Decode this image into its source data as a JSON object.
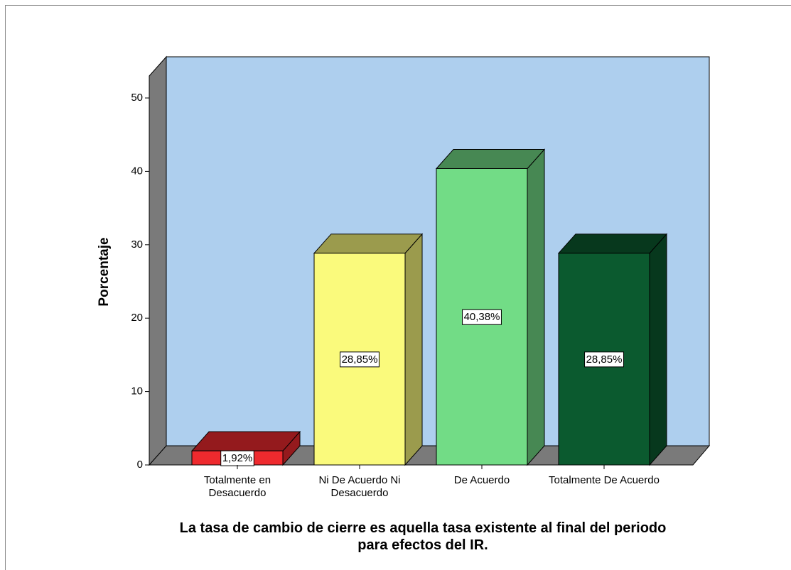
{
  "chart_data": {
    "type": "bar3d",
    "x_label": "La tasa de cambio de cierre es aquella tasa existente al final del periodo para efectos del IR.",
    "y_label": "Porcentaje",
    "categories": [
      "Totalmente en Desacuerdo",
      "Ni De Acuerdo Ni Desacuerdo",
      "De Acuerdo",
      "Totalmente De Acuerdo"
    ],
    "values": [
      1.92,
      28.85,
      40.38,
      28.85
    ],
    "value_labels": [
      "1,92%",
      "28,85%",
      "40,38%",
      "28,85%"
    ],
    "colors": [
      "#ee2a2e",
      "#fafa7c",
      "#72dc86",
      "#0b5a2f"
    ],
    "ylim": [
      0,
      53
    ],
    "yticks": [
      0,
      10,
      20,
      30,
      40,
      50
    ]
  }
}
